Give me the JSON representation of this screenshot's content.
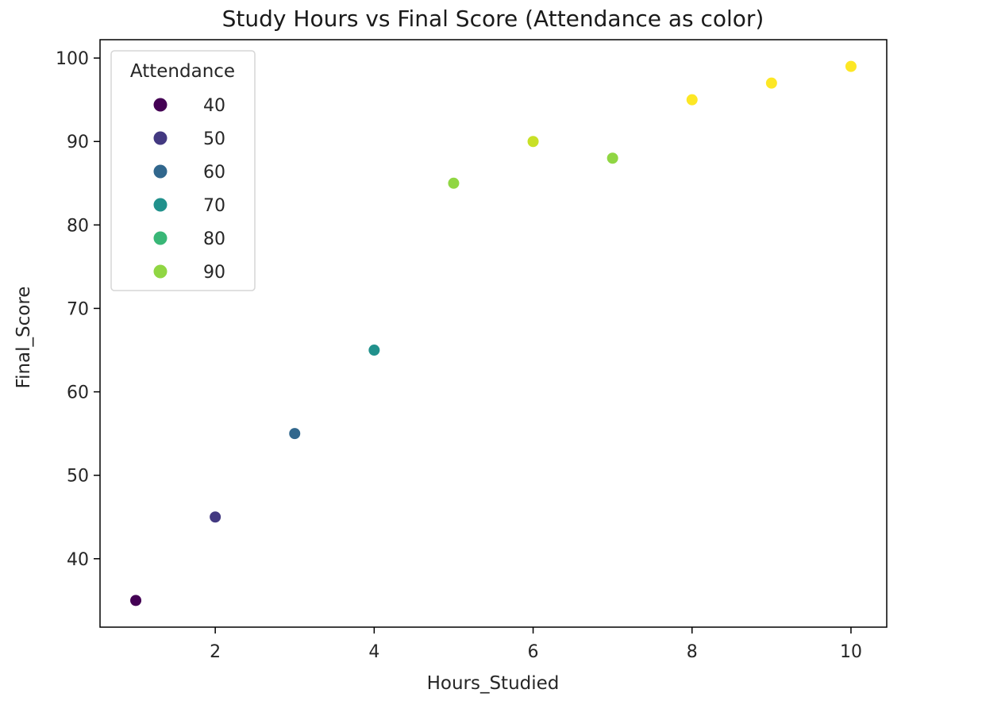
{
  "chart_data": {
    "type": "scatter",
    "title": "Study Hours vs Final Score (Attendance as color)",
    "xlabel": "Hours_Studied",
    "ylabel": "Final_Score",
    "xlim": [
      0.55,
      10.45
    ],
    "ylim": [
      31.8,
      102.2
    ],
    "xticks": [
      2,
      4,
      6,
      8,
      10
    ],
    "yticks": [
      40,
      50,
      60,
      70,
      80,
      90,
      100
    ],
    "grid": false,
    "colormap": "viridis",
    "hue_range": [
      40,
      100
    ],
    "points": [
      {
        "x": 1,
        "y": 35,
        "attendance": 40
      },
      {
        "x": 2,
        "y": 45,
        "attendance": 50
      },
      {
        "x": 3,
        "y": 55,
        "attendance": 60
      },
      {
        "x": 4,
        "y": 65,
        "attendance": 70
      },
      {
        "x": 5,
        "y": 85,
        "attendance": 90
      },
      {
        "x": 6,
        "y": 90,
        "attendance": 95
      },
      {
        "x": 7,
        "y": 88,
        "attendance": 90
      },
      {
        "x": 8,
        "y": 95,
        "attendance": 100
      },
      {
        "x": 9,
        "y": 97,
        "attendance": 100
      },
      {
        "x": 10,
        "y": 99,
        "attendance": 100
      }
    ],
    "legend": {
      "title": "Attendance",
      "placement": "top-left",
      "entries": [
        {
          "label": "40",
          "value": 40
        },
        {
          "label": "50",
          "value": 50
        },
        {
          "label": "60",
          "value": 60
        },
        {
          "label": "70",
          "value": 70
        },
        {
          "label": "80",
          "value": 80
        },
        {
          "label": "90",
          "value": 90
        }
      ]
    }
  }
}
